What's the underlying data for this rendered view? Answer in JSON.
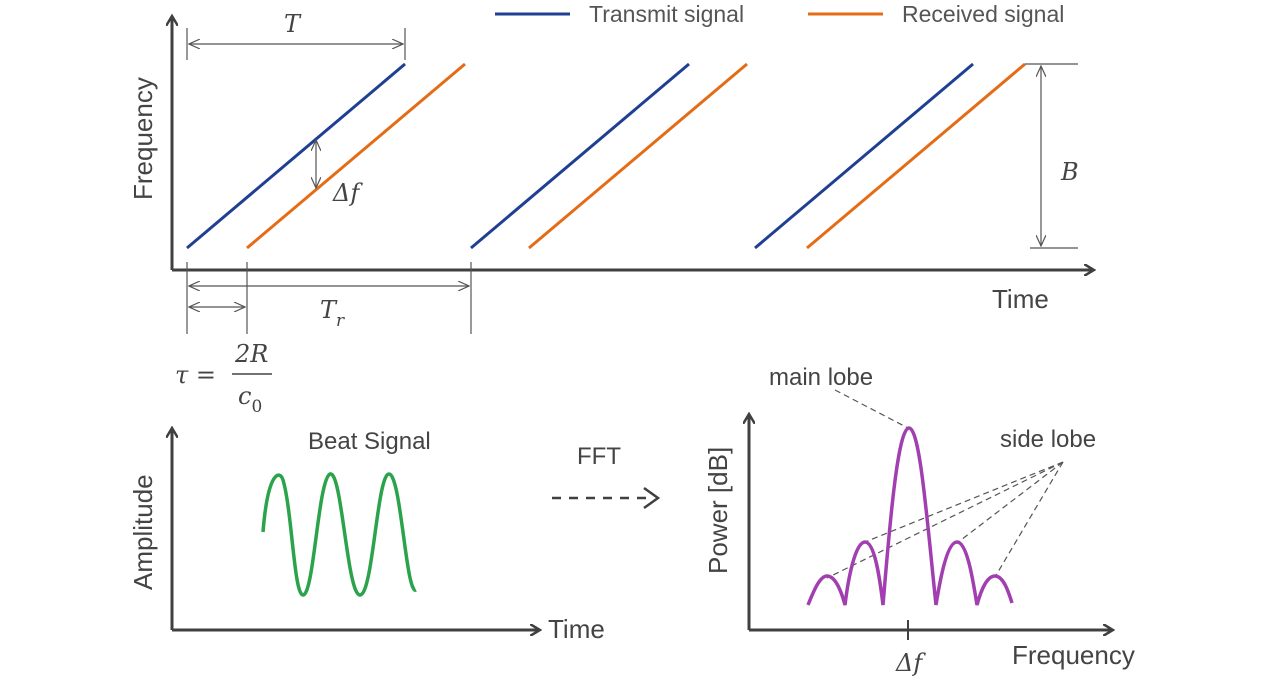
{
  "colors": {
    "transmit": "#1f3f93",
    "received": "#e46c16",
    "beat": "#2aa34a",
    "spectrum": "#a23fb0",
    "axis": "#404040",
    "dim": "#555555"
  },
  "legend": {
    "transmit_label": "Transmit signal",
    "received_label": "Received signal"
  },
  "top_plot": {
    "ylabel": "Frequency",
    "xlabel": "Time",
    "period_label": "T",
    "bandwidth_label": "B",
    "freq_diff_label": "Δf",
    "repetition_label_main": "T",
    "repetition_label_sub": "r",
    "delay_label": "τ =",
    "delay_numerator": "2R",
    "delay_denominator_main": "c",
    "delay_denominator_sub": "0"
  },
  "beat_plot": {
    "title": "Beat Signal",
    "ylabel": "Amplitude",
    "xlabel": "Time"
  },
  "fft": {
    "label": "FFT"
  },
  "spectrum_plot": {
    "ylabel": "Power [dB]",
    "xlabel": "Frequency",
    "main_lobe_label": "main lobe",
    "side_lobe_label": "side lobe",
    "peak_label": "Δf"
  }
}
